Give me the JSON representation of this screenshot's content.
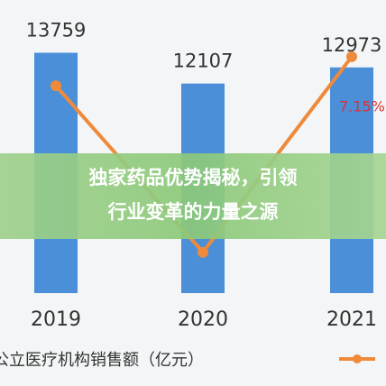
{
  "chart_data": {
    "type": "bar",
    "categories": [
      "2019",
      "2020",
      "2021"
    ],
    "ylim": [
      875,
      16200
    ],
    "y2lim": [
      -16,
      12
    ],
    "series": [
      {
        "name": "公立医疗机构销售额（亿元）",
        "color": "#4a8fd8",
        "values": [
          13759,
          12107,
          12973
        ]
      },
      {
        "type": "line",
        "axis": "y2",
        "color": "#ef8a3a",
        "values": [
          4.3,
          -12.0,
          7.15
        ],
        "value_labels": [
          null,
          null,
          "7.15%"
        ]
      }
    ]
  },
  "banner": {
    "lines": [
      "独家药品优势揭秘，引领",
      "行业变革的力量之源"
    ]
  }
}
